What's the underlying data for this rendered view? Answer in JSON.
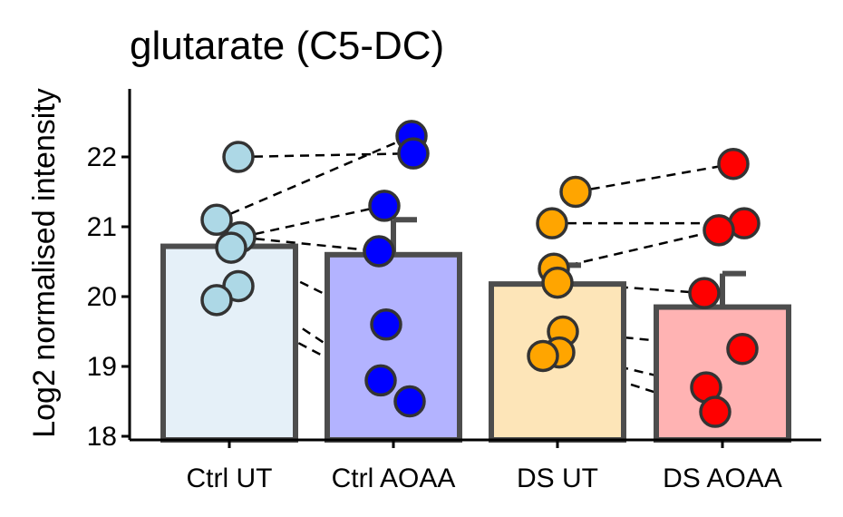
{
  "chart_data": {
    "type": "bar",
    "title": "glutarate (C5-DC)",
    "xlabel": "",
    "ylabel": "Log2 normalised intensity",
    "ylim": [
      17.95,
      23.0
    ],
    "yticks": [
      18,
      19,
      20,
      21,
      22
    ],
    "grid": false,
    "legend": "none",
    "categories": [
      "Ctrl UT",
      "Ctrl AOAA",
      "DS UT",
      "DS AOAA"
    ],
    "bar_values": [
      20.72,
      20.6,
      20.18,
      19.85
    ],
    "error_upper": [
      20.72,
      21.1,
      20.45,
      20.33
    ],
    "bar_fill_colors": [
      "#e5f0f8",
      "#b3b3ff",
      "#fde5b8",
      "#ffb3b3"
    ],
    "point_colors": [
      "#add8e6",
      "#0000ff",
      "#ffa500",
      "#ff0000"
    ],
    "points": [
      [
        22.0,
        21.1,
        20.85,
        20.7,
        20.15,
        19.95
      ],
      [
        22.3,
        22.05,
        21.3,
        20.65,
        19.6,
        18.8,
        18.5
      ],
      [
        21.5,
        21.05,
        20.4,
        20.2,
        19.5,
        19.2,
        19.15
      ],
      [
        21.9,
        21.05,
        20.95,
        20.05,
        19.25,
        18.7,
        18.35
      ]
    ],
    "pairs": [
      [
        22.0,
        22.05
      ],
      [
        21.1,
        22.3
      ],
      [
        20.85,
        21.3
      ],
      [
        20.85,
        20.65
      ],
      [
        20.7,
        19.6
      ],
      [
        20.15,
        18.8
      ],
      [
        19.95,
        18.5
      ],
      [
        21.5,
        21.9
      ],
      [
        21.05,
        21.05
      ],
      [
        20.4,
        20.95
      ],
      [
        20.2,
        20.05
      ],
      [
        19.5,
        19.25
      ],
      [
        19.2,
        18.7
      ],
      [
        19.15,
        18.35
      ]
    ]
  }
}
